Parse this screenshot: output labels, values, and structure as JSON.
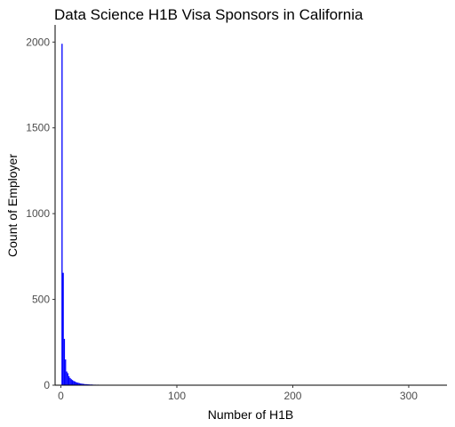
{
  "chart_data": {
    "type": "bar",
    "title": "Data Science H1B Visa Sponsors in California",
    "xlabel": "Number of H1B",
    "ylabel": "Count of Employer",
    "xlim": [
      -5,
      333
    ],
    "ylim": [
      0,
      2100
    ],
    "xticks": [
      0,
      100,
      200,
      300
    ],
    "yticks": [
      0,
      500,
      1000,
      1500,
      2000
    ],
    "grid": false,
    "bar_color": "#0000ff",
    "x": [
      1,
      2,
      3,
      4,
      5,
      6,
      7,
      8,
      9,
      10,
      11,
      12,
      13,
      14,
      15,
      16,
      17,
      18,
      19,
      20,
      21,
      22,
      23,
      24,
      25,
      26,
      27,
      28,
      29,
      30,
      32,
      35,
      38,
      40,
      43,
      45,
      48,
      50,
      53,
      55,
      58,
      60,
      63,
      65,
      68,
      70,
      73,
      75,
      78,
      80,
      83,
      85,
      88,
      90,
      93,
      96,
      100,
      142,
      175,
      205,
      230,
      255,
      318
    ],
    "values": [
      1990,
      655,
      270,
      150,
      80,
      70,
      52,
      42,
      35,
      30,
      25,
      22,
      18,
      16,
      14,
      12,
      10,
      9,
      8,
      7,
      6,
      6,
      5,
      5,
      4,
      4,
      4,
      3,
      3,
      3,
      3,
      2,
      2,
      2,
      2,
      2,
      2,
      2,
      2,
      2,
      2,
      2,
      2,
      2,
      2,
      2,
      2,
      2,
      2,
      2,
      2,
      2,
      2,
      2,
      2,
      2,
      2,
      1,
      1,
      1,
      1,
      1,
      1
    ]
  }
}
